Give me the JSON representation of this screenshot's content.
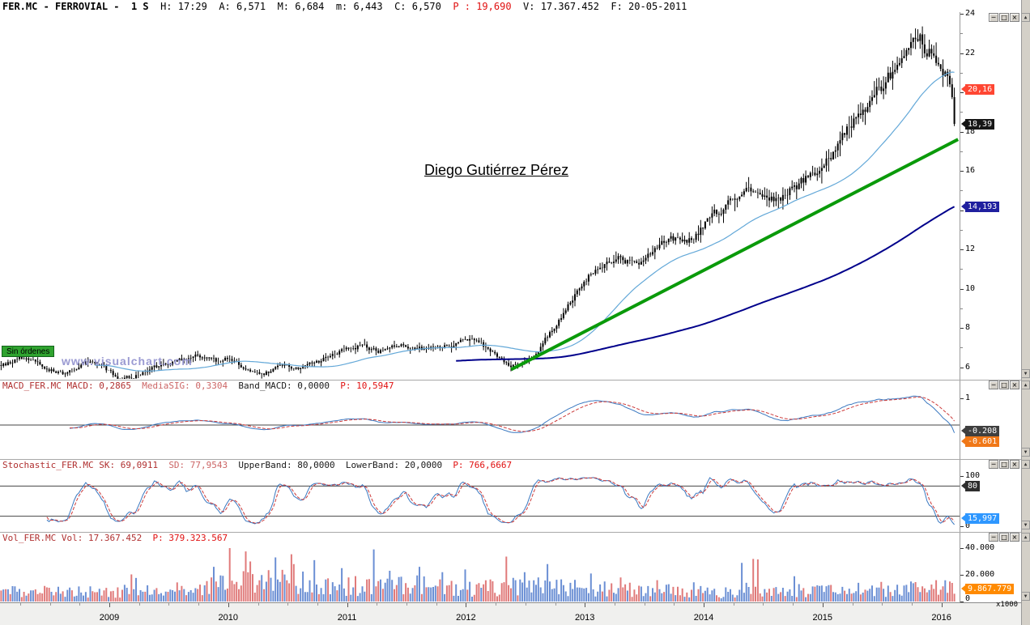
{
  "header": {
    "segments": [
      {
        "text": "FER.MC - FERROVIAL -  1 S  ",
        "color": "#000000",
        "bold": true
      },
      {
        "text": "H: 17:29  A: 6,571  M: 6,684  m: 6,443  C: 6,570  ",
        "color": "#000000"
      },
      {
        "text": "P : 19,690  ",
        "color": "#e01010"
      },
      {
        "text": "V: 17.367.452  F: 20-05-2011",
        "color": "#000000"
      }
    ]
  },
  "annotations": {
    "author": "Diego Gutiérrez Pérez",
    "watermark": "www.visualchart.com",
    "orders_label": "Sin órdenes"
  },
  "time_axis": {
    "years": [
      "2009",
      "2010",
      "2011",
      "2012",
      "2013",
      "2014",
      "2015",
      "2016"
    ]
  },
  "controls": {
    "window_buttons": [
      "─",
      "□",
      "×"
    ],
    "scroll_up": "▲",
    "scroll_down": "▼"
  },
  "chart_data": [
    {
      "type": "candlestick",
      "name": "FER.MC FERROVIAL weekly price",
      "x_range": [
        2008.09,
        2016.13
      ],
      "y_ticks": [
        24,
        22,
        20,
        18,
        16,
        14,
        12,
        10,
        8,
        6
      ],
      "minor_ticks": [
        23,
        21,
        19,
        17,
        15,
        13,
        11,
        9,
        7
      ],
      "last_price": 18.39,
      "price_path": [
        [
          2008.09,
          6.1
        ],
        [
          2008.25,
          6.5
        ],
        [
          2008.45,
          6.0
        ],
        [
          2008.6,
          5.6
        ],
        [
          2008.8,
          6.3
        ],
        [
          2008.95,
          5.9
        ],
        [
          2009.08,
          5.3
        ],
        [
          2009.2,
          5.6
        ],
        [
          2009.35,
          6.0
        ],
        [
          2009.5,
          6.2
        ],
        [
          2009.65,
          6.5
        ],
        [
          2009.8,
          6.6
        ],
        [
          2009.9,
          6.2
        ],
        [
          2010.0,
          6.6
        ],
        [
          2010.1,
          6.0
        ],
        [
          2010.3,
          5.7
        ],
        [
          2010.45,
          6.1
        ],
        [
          2010.6,
          5.9
        ],
        [
          2010.75,
          6.3
        ],
        [
          2010.95,
          6.9
        ],
        [
          2011.1,
          7.1
        ],
        [
          2011.25,
          6.8
        ],
        [
          2011.45,
          7.1
        ],
        [
          2011.6,
          6.9
        ],
        [
          2011.75,
          7.0
        ],
        [
          2011.95,
          7.3
        ],
        [
          2012.05,
          7.4
        ],
        [
          2012.2,
          6.8
        ],
        [
          2012.35,
          6.1
        ],
        [
          2012.45,
          6.0
        ],
        [
          2012.55,
          6.6
        ],
        [
          2012.7,
          7.8
        ],
        [
          2012.85,
          9.2
        ],
        [
          2013.0,
          10.6
        ],
        [
          2013.12,
          11.3
        ],
        [
          2013.25,
          11.7
        ],
        [
          2013.4,
          11.2
        ],
        [
          2013.55,
          11.9
        ],
        [
          2013.7,
          12.4
        ],
        [
          2013.85,
          12.5
        ],
        [
          2014.0,
          13.3
        ],
        [
          2014.15,
          14.1
        ],
        [
          2014.3,
          14.8
        ],
        [
          2014.45,
          15.2
        ],
        [
          2014.6,
          14.6
        ],
        [
          2014.75,
          15.1
        ],
        [
          2014.9,
          15.9
        ],
        [
          2015.0,
          16.4
        ],
        [
          2015.1,
          17.3
        ],
        [
          2015.22,
          18.3
        ],
        [
          2015.35,
          19.4
        ],
        [
          2015.48,
          20.3
        ],
        [
          2015.6,
          21.3
        ],
        [
          2015.72,
          22.1
        ],
        [
          2015.8,
          22.9
        ],
        [
          2015.86,
          22.1
        ],
        [
          2015.93,
          22.5
        ],
        [
          2016.0,
          20.6
        ],
        [
          2016.05,
          20.9
        ],
        [
          2016.1,
          19.3
        ],
        [
          2016.13,
          18.39
        ]
      ],
      "moving_averages": [
        {
          "name": "fast moving average",
          "period": 42,
          "color": "#63a8d8"
        },
        {
          "name": "slow moving average",
          "period": 200,
          "color": "#00008b"
        }
      ],
      "trendline": {
        "t1": 2012.38,
        "p1": 5.88,
        "t2": 2016.14,
        "p2": 17.6,
        "color": "#0a9a0a",
        "width": 4
      },
      "badges": [
        {
          "label": "20,16",
          "value": 20.16,
          "bg": "#ff4632"
        },
        {
          "label": "18,39",
          "value": 18.39,
          "bg": "#161616"
        },
        {
          "label": "14,193",
          "value": 14.193,
          "bg": "#20209f"
        }
      ]
    },
    {
      "type": "line",
      "name": "MACD",
      "header_segments": [
        {
          "text": "MACD_FER.MC ",
          "color": "#b03030"
        },
        {
          "text": "MACD: 0,2865  ",
          "color": "#b03030"
        },
        {
          "text": "MediaSIG: 0,3304  ",
          "color": "#cc6666"
        },
        {
          "text": "Band_MACD: 0,0000  ",
          "color": "#1a1a1a"
        },
        {
          "text": "P: 10,5947",
          "color": "#e01010"
        }
      ],
      "params": {
        "fast": 12,
        "slow": 26,
        "signal": 9
      },
      "series": [
        {
          "name": "MACD",
          "color": "#3a78c0",
          "style": "solid",
          "last": 0.2865
        },
        {
          "name": "MediaSIG",
          "color": "#cc3a3a",
          "style": "dashed",
          "last": 0.3304
        }
      ],
      "y_ticks": [
        1
      ],
      "badges": [
        {
          "label": "-0.208",
          "value": -0.208,
          "bg": "#3f3f3f"
        },
        {
          "label": "-0.601",
          "value": -0.601,
          "bg": "#f07818"
        }
      ]
    },
    {
      "type": "line",
      "name": "Stochastic",
      "header_segments": [
        {
          "text": "Stochastic_FER.MC ",
          "color": "#b03030"
        },
        {
          "text": "SK: 69,0911  ",
          "color": "#b03030"
        },
        {
          "text": "SD: 77,9543  ",
          "color": "#cc6666"
        },
        {
          "text": "UpperBand: 80,0000  ",
          "color": "#1a1a1a"
        },
        {
          "text": "LowerBand: 20,0000  ",
          "color": "#1a1a1a"
        },
        {
          "text": "P: 766,6667",
          "color": "#e01010"
        }
      ],
      "bands": {
        "upper": 80,
        "lower": 20
      },
      "series": [
        {
          "name": "SK",
          "color": "#3a78c0",
          "style": "solid",
          "last": 69.0911
        },
        {
          "name": "SD",
          "color": "#cc3a3a",
          "style": "dashed",
          "last": 77.9543
        }
      ],
      "y_ticks": [
        100,
        0
      ],
      "badges": [
        {
          "label": "80",
          "value": 80,
          "bg": "#2e2e2e"
        },
        {
          "label": "15,997",
          "value": 15.997,
          "bg": "#2e97ff"
        }
      ]
    },
    {
      "type": "bar",
      "name": "Volume",
      "header_segments": [
        {
          "text": "Vol_FER.MC ",
          "color": "#b03030"
        },
        {
          "text": "Vol: 17.367.452  ",
          "color": "#b03030"
        },
        {
          "text": "P: 379.323.567",
          "color": "#e01010"
        }
      ],
      "unit_label": "x1000",
      "y_ticks": [
        {
          "label": "40.000",
          "value": 40000
        },
        {
          "label": "20.000",
          "value": 20000
        },
        {
          "label": "0",
          "value": 0
        }
      ],
      "base_profile": [
        [
          2008.09,
          7000
        ],
        [
          2009.0,
          8000
        ],
        [
          2009.6,
          9000
        ],
        [
          2009.95,
          12000
        ],
        [
          2010.1,
          14000
        ],
        [
          2010.5,
          15000
        ],
        [
          2010.9,
          12000
        ],
        [
          2011.3,
          11000
        ],
        [
          2011.7,
          12000
        ],
        [
          2012.1,
          10000
        ],
        [
          2012.6,
          12000
        ],
        [
          2013.0,
          10000
        ],
        [
          2013.5,
          8500
        ],
        [
          2014.0,
          7000
        ],
        [
          2014.5,
          6500
        ],
        [
          2015.0,
          7500
        ],
        [
          2015.5,
          8000
        ],
        [
          2016.0,
          9500
        ],
        [
          2016.13,
          10000
        ]
      ],
      "spikes": [
        [
          2009.88,
          26000
        ],
        [
          2010.02,
          40000
        ],
        [
          2010.18,
          30000
        ],
        [
          2010.4,
          33000
        ],
        [
          2010.55,
          28000
        ],
        [
          2010.72,
          31000
        ],
        [
          2010.95,
          25000
        ],
        [
          2011.35,
          23000
        ],
        [
          2011.6,
          26000
        ],
        [
          2011.8,
          22000
        ],
        [
          2012.0,
          24000
        ],
        [
          2012.5,
          22000
        ],
        [
          2012.68,
          28000
        ],
        [
          2013.05,
          21000
        ],
        [
          2013.3,
          18000
        ],
        [
          2013.6,
          16000
        ],
        [
          2014.35,
          14000
        ],
        [
          2014.8,
          13000
        ],
        [
          2015.3,
          14000
        ],
        [
          2015.75,
          15000
        ],
        [
          2015.95,
          16000
        ],
        [
          2016.08,
          15000
        ]
      ],
      "colors": {
        "up": "#6b8fd4",
        "down": "#e07a7a"
      },
      "badges": [
        {
          "label": "9.867.779",
          "value": 9868,
          "bg": "#ff8a00"
        }
      ]
    }
  ]
}
